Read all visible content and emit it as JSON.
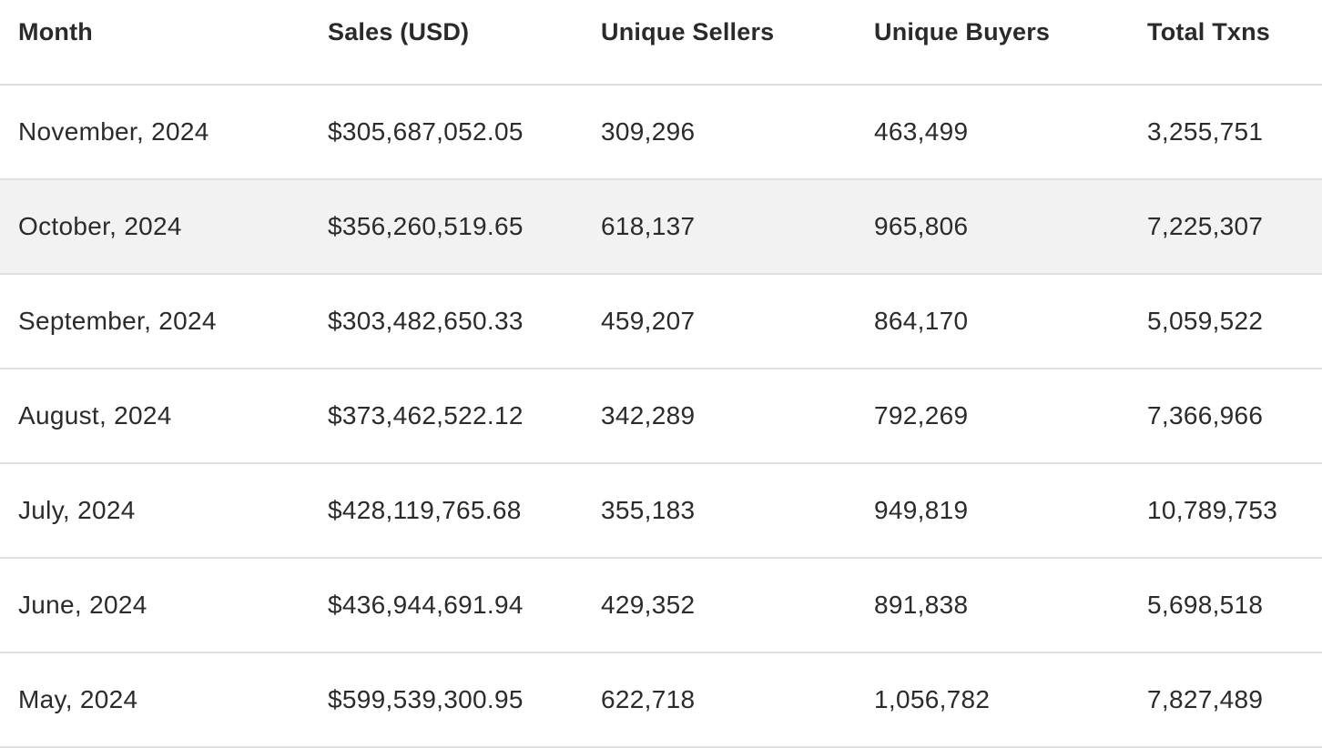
{
  "table": {
    "headers": [
      "Month",
      "Sales (USD)",
      "Unique Sellers",
      "Unique Buyers",
      "Total Txns"
    ],
    "rows": [
      [
        "November, 2024",
        "$305,687,052.05",
        "309,296",
        "463,499",
        "3,255,751"
      ],
      [
        "October, 2024",
        "$356,260,519.65",
        "618,137",
        "965,806",
        "7,225,307"
      ],
      [
        "September, 2024",
        "$303,482,650.33",
        "459,207",
        "864,170",
        "5,059,522"
      ],
      [
        "August, 2024",
        "$373,462,522.12",
        "342,289",
        "792,269",
        "7,366,966"
      ],
      [
        "July, 2024",
        "$428,119,765.68",
        "355,183",
        "949,819",
        "10,789,753"
      ],
      [
        "June, 2024",
        "$436,944,691.94",
        "429,352",
        "891,838",
        "5,698,518"
      ],
      [
        "May, 2024",
        "$599,539,300.95",
        "622,718",
        "1,056,782",
        "7,827,489"
      ]
    ]
  },
  "colors": {
    "striped_row_background": "#f2f2f2",
    "text": "#2b2b2b",
    "divider": "#e0e0e0"
  }
}
